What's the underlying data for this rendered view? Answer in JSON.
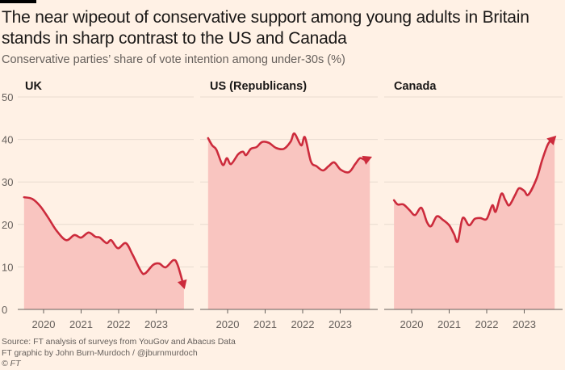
{
  "header": {
    "title": "The near wipeout of conservative support among young adults in Britain stands in sharp contrast to the US and Canada",
    "subtitle": "Conservative parties’ share of vote intention among under-30s (%)"
  },
  "footer": {
    "source": "Source: FT analysis of surveys from YouGov and Abacus Data",
    "credit": "FT graphic by John Burn-Murdoch / @jburnmurdoch",
    "copyright": "© FT"
  },
  "colors": {
    "background": "#fff1e5",
    "line": "#cc2b3c",
    "area": "#f9c5c0",
    "grid": "#e8dbd0",
    "axis": "#66605c"
  },
  "chart_data": [
    {
      "type": "area",
      "title": "UK",
      "xlabel": "",
      "ylabel": "",
      "ylim": [
        0,
        50
      ],
      "xlim": [
        2019.3,
        2024.0
      ],
      "yticks": [
        0,
        10,
        20,
        30,
        40,
        50
      ],
      "xticks": [
        2020,
        2021,
        2022,
        2023
      ],
      "xtick_labels": [
        "2020",
        "2021",
        "2022",
        "2023"
      ],
      "grid": true,
      "end_marker": "arrow",
      "x": [
        2019.48,
        2019.7,
        2019.91,
        2020.13,
        2020.34,
        2020.6,
        2020.82,
        2021.0,
        2021.2,
        2021.38,
        2021.5,
        2021.68,
        2021.8,
        2021.98,
        2022.19,
        2022.37,
        2022.6,
        2022.71,
        2022.92,
        2023.08,
        2023.25,
        2023.46,
        2023.57,
        2023.74
      ],
      "y": [
        26.4,
        26.0,
        24.3,
        21.5,
        18.6,
        16.3,
        17.5,
        16.9,
        18.1,
        17.1,
        16.9,
        15.6,
        16.3,
        14.4,
        15.6,
        12.9,
        8.9,
        8.5,
        10.5,
        10.8,
        9.9,
        11.6,
        10.5,
        5.3
      ]
    },
    {
      "type": "area",
      "title": "US (Republicans)",
      "xlabel": "",
      "ylabel": "",
      "ylim": [
        0,
        50
      ],
      "xlim": [
        2019.3,
        2024.0
      ],
      "yticks": [
        0,
        10,
        20,
        30,
        40,
        50
      ],
      "xticks": [
        2020,
        2021,
        2022,
        2023
      ],
      "xtick_labels": [
        "2020",
        "2021",
        "2022",
        "2023"
      ],
      "grid": true,
      "end_marker": "arrow",
      "x": [
        2019.48,
        2019.59,
        2019.7,
        2019.87,
        2019.98,
        2020.09,
        2020.28,
        2020.41,
        2020.49,
        2020.62,
        2020.77,
        2020.92,
        2021.1,
        2021.29,
        2021.5,
        2021.68,
        2021.78,
        2021.96,
        2022.06,
        2022.22,
        2022.37,
        2022.54,
        2022.69,
        2022.84,
        2023.01,
        2023.23,
        2023.4,
        2023.53,
        2023.66,
        2023.79
      ],
      "y": [
        40.3,
        38.6,
        37.6,
        34.0,
        35.6,
        34.2,
        36.5,
        37.1,
        36.3,
        37.8,
        38.2,
        39.4,
        39.2,
        38.0,
        37.8,
        39.5,
        41.4,
        38.6,
        40.5,
        34.8,
        33.7,
        32.7,
        33.7,
        34.6,
        32.9,
        32.3,
        34.2,
        35.6,
        35.2,
        35.7
      ]
    },
    {
      "type": "area",
      "title": "Canada",
      "xlabel": "",
      "ylabel": "",
      "ylim": [
        0,
        50
      ],
      "xlim": [
        2019.3,
        2024.0
      ],
      "yticks": [
        0,
        10,
        20,
        30,
        40,
        50
      ],
      "xticks": [
        2020,
        2021,
        2022,
        2023
      ],
      "xtick_labels": [
        "2020",
        "2021",
        "2022",
        "2023"
      ],
      "grid": true,
      "end_marker": "arrow",
      "x": [
        2019.53,
        2019.63,
        2019.78,
        2019.94,
        2020.09,
        2020.26,
        2020.41,
        2020.52,
        2020.67,
        2020.83,
        2021.0,
        2021.13,
        2021.23,
        2021.36,
        2021.53,
        2021.68,
        2021.83,
        2022.0,
        2022.15,
        2022.24,
        2022.39,
        2022.5,
        2022.6,
        2022.75,
        2022.86,
        2023.0,
        2023.11,
        2023.33,
        2023.48,
        2023.64,
        2023.81
      ],
      "y": [
        25.7,
        24.7,
        24.7,
        23.4,
        22.2,
        23.9,
        20.5,
        19.6,
        21.9,
        21.1,
        19.8,
        17.7,
        16.0,
        21.5,
        19.8,
        21.3,
        21.5,
        21.3,
        24.5,
        23.0,
        27.2,
        25.7,
        24.5,
        26.8,
        28.5,
        27.9,
        27.0,
        30.8,
        35.2,
        39.0,
        40.5
      ]
    }
  ]
}
